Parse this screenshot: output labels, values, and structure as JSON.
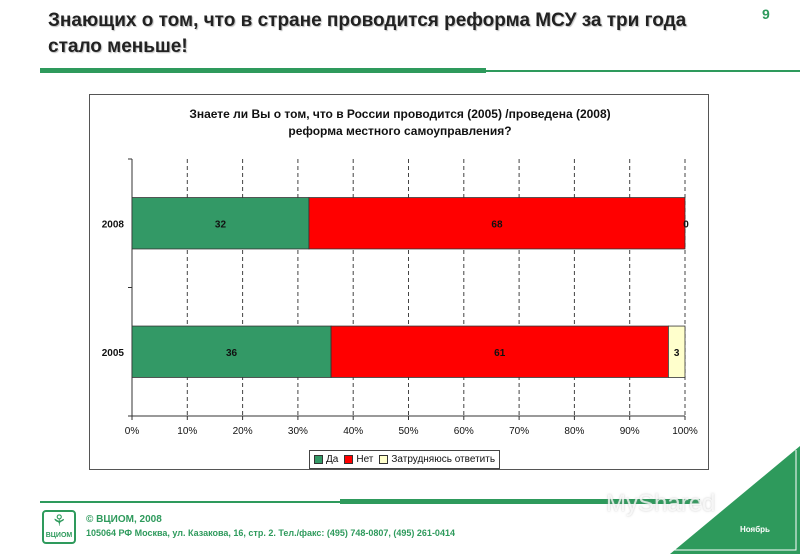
{
  "slide": {
    "title": "Знающих о том, что в стране проводится реформа МСУ за три года стало меньше!",
    "page_number": "9"
  },
  "chart_data": {
    "type": "bar",
    "orientation": "horizontal",
    "stacked": "percent",
    "title_lines": [
      "Знаете ли Вы о том, что в России проводится (2005) /проведена (2008)",
      "реформа местного самоуправления?"
    ],
    "categories": [
      "2008",
      "2005"
    ],
    "series": [
      {
        "name": "Да",
        "values": [
          32,
          36
        ],
        "color": "#339966"
      },
      {
        "name": "Нет",
        "values": [
          68,
          61
        ],
        "color": "#ff0000"
      },
      {
        "name": "Затрудняюсь ответить",
        "values": [
          0,
          3
        ],
        "color": "#ffffcc"
      }
    ],
    "x_ticks": [
      "0%",
      "10%",
      "20%",
      "30%",
      "40%",
      "50%",
      "60%",
      "70%",
      "80%",
      "90%",
      "100%"
    ],
    "xlim": [
      0,
      100
    ],
    "grid": "vertical dashed",
    "legend_position": "bottom"
  },
  "footer": {
    "logo_text": "ВЦИОМ",
    "copyright": "© ВЦИОМ, 2008",
    "address": "105064 РФ Москва, ул. Казакова, 16, стр. 2. Тел./факс: (495) 748-0807, (495) 261-0414",
    "month": "Ноябрь",
    "watermark": "MyShared"
  },
  "colors": {
    "brand_green": "#2e9a5c"
  }
}
